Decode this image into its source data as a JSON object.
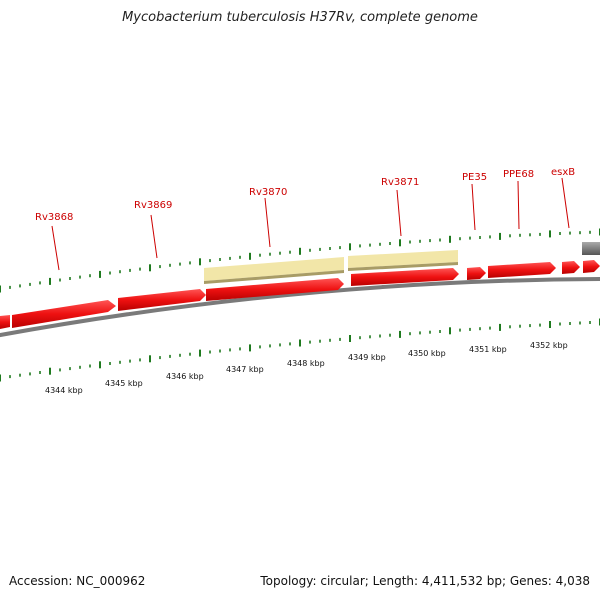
{
  "header": {
    "title": "Mycobacterium tuberculosis H37Rv, complete genome"
  },
  "footer": {
    "accession": "Accession: NC_000962",
    "summary": "Topology: circular; Length: 4,411,532 bp; Genes: 4,038"
  },
  "genes": [
    {
      "name": "Rv3868"
    },
    {
      "name": "Rv3869"
    },
    {
      "name": "Rv3870"
    },
    {
      "name": "Rv3871"
    },
    {
      "name": "PE35"
    },
    {
      "name": "PPE68"
    },
    {
      "name": "esxB"
    }
  ],
  "kbp_ticks": [
    "4344 kbp",
    "4345 kbp",
    "4346 kbp",
    "4347 kbp",
    "4348 kbp",
    "4349 kbp",
    "4350 kbp",
    "4351 kbp",
    "4352 kbp"
  ],
  "colors": {
    "cds": "#ee1111",
    "highlight": "#f2e6a8",
    "backbone": "#7a7a7a",
    "gc_ticks": "#1f7a1f",
    "label": "#cc0000",
    "other_feature": "#7a7a7a"
  }
}
